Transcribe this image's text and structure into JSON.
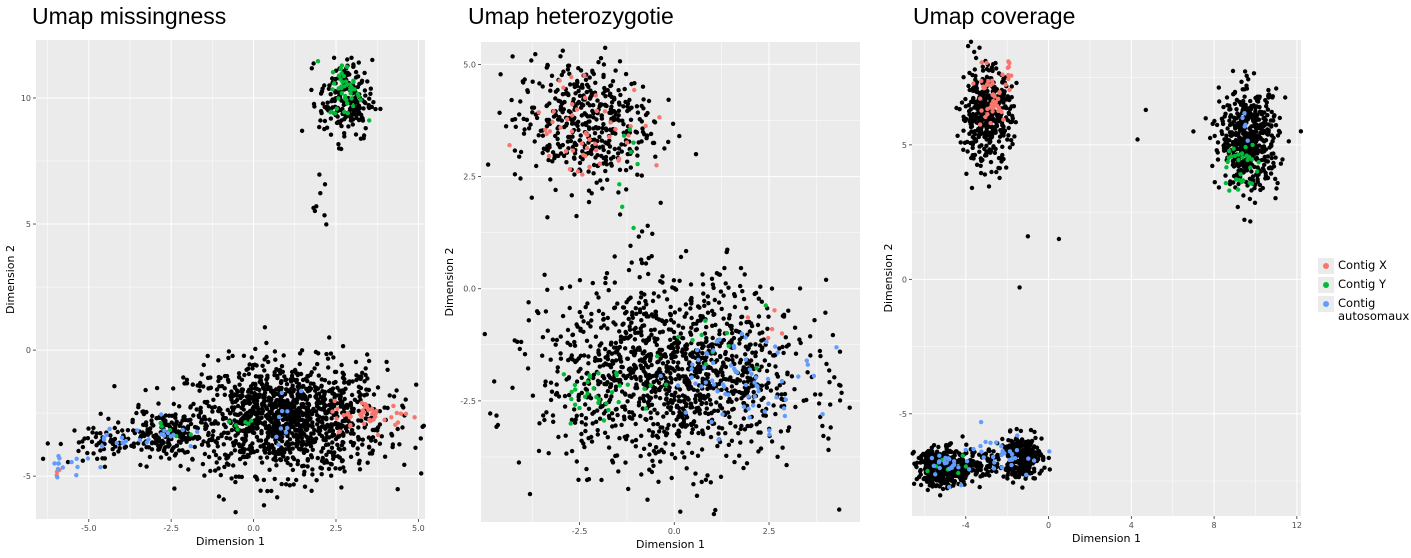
{
  "colors": {
    "panel_bg": "#ebebeb",
    "grid": "#ffffff",
    "contig_x": "#f8766d",
    "contig_y": "#00ba38",
    "contig_autosomaux": "#619cff",
    "other": "#000000"
  },
  "legend": {
    "items": [
      {
        "label": "Contig X",
        "color": "#f8766d"
      },
      {
        "label": "Contig Y",
        "color": "#00ba38"
      },
      {
        "label": "Contig\nautosomaux",
        "color": "#619cff"
      }
    ]
  },
  "chart_data": [
    {
      "type": "scatter",
      "title": "Umap missingness",
      "xlabel": "Dimension 1",
      "ylabel": "Dimension 2",
      "xlim": [
        -6.6,
        5.2
      ],
      "ylim": [
        -6.7,
        12.3
      ],
      "xticks": [
        -5.0,
        -2.5,
        0.0,
        2.5,
        5.0
      ],
      "xtick_labels": [
        "-5.0",
        "-2.5",
        "0.0",
        "2.5",
        "5.0"
      ],
      "yticks": [
        -5,
        0,
        5,
        10
      ],
      "ytick_labels": [
        "-5",
        "0",
        "5",
        "10"
      ],
      "grid": true,
      "clusters": [
        {
          "series": "other",
          "cx": 1.0,
          "cy": -2.7,
          "sx": 1.5,
          "sy": 1.1,
          "n": 1300
        },
        {
          "series": "other",
          "cx": -2.6,
          "cy": -3.3,
          "sx": 0.6,
          "sy": 0.45,
          "n": 160
        },
        {
          "series": "other",
          "cx": -4.6,
          "cy": -3.7,
          "sx": 0.7,
          "sy": 0.4,
          "n": 70
        },
        {
          "series": "other",
          "cx": 2.8,
          "cy": 9.9,
          "sx": 0.4,
          "sy": 0.8,
          "n": 200
        },
        {
          "series": "other",
          "cx": 2.0,
          "cy": 6.0,
          "sx": 0.25,
          "sy": 0.9,
          "n": 8
        },
        {
          "series": "Contig X",
          "cx": 3.6,
          "cy": -2.6,
          "sx": 0.6,
          "sy": 0.3,
          "n": 45
        },
        {
          "series": "Contig X",
          "cx": -6.0,
          "cy": -4.8,
          "sx": 0.2,
          "sy": 0.15,
          "n": 3
        },
        {
          "series": "Contig Y",
          "cx": 2.8,
          "cy": 10.3,
          "sx": 0.25,
          "sy": 0.55,
          "n": 45
        },
        {
          "series": "Contig Y",
          "cx": -0.3,
          "cy": -2.9,
          "sx": 0.3,
          "sy": 0.15,
          "n": 6
        },
        {
          "series": "Contig Y",
          "cx": -2.6,
          "cy": -3.3,
          "sx": 0.4,
          "sy": 0.3,
          "n": 5
        },
        {
          "series": "Contig autosomaux",
          "cx": -5.6,
          "cy": -4.4,
          "sx": 0.35,
          "sy": 0.3,
          "n": 14
        },
        {
          "series": "Contig autosomaux",
          "cx": -3.9,
          "cy": -3.5,
          "sx": 0.5,
          "sy": 0.3,
          "n": 14
        },
        {
          "series": "Contig autosomaux",
          "cx": -2.6,
          "cy": -3.3,
          "sx": 0.4,
          "sy": 0.3,
          "n": 10
        },
        {
          "series": "Contig autosomaux",
          "cx": 1.0,
          "cy": -2.4,
          "sx": 0.4,
          "sy": 0.5,
          "n": 10
        }
      ]
    },
    {
      "type": "scatter",
      "title": "Umap heterozygotie",
      "xlabel": "Dimension 1",
      "ylabel": "Dimension 2",
      "xlim": [
        -5.1,
        4.9
      ],
      "ylim": [
        -5.2,
        5.5
      ],
      "xticks": [
        -2.5,
        0.0,
        2.5
      ],
      "xtick_labels": [
        "-2.5",
        "0.0",
        "2.5"
      ],
      "yticks": [
        -2.5,
        0.0,
        2.5,
        5.0
      ],
      "ytick_labels": [
        "-2.5",
        "0.0",
        "2.5",
        "5.0"
      ],
      "grid": true,
      "clusters": [
        {
          "series": "other",
          "cx": -2.4,
          "cy": 3.7,
          "sx": 0.9,
          "sy": 0.7,
          "n": 450
        },
        {
          "series": "other",
          "cx": 0.0,
          "cy": -1.9,
          "sx": 1.7,
          "sy": 1.0,
          "n": 1300
        },
        {
          "series": "other",
          "cx": -0.9,
          "cy": 1.1,
          "sx": 0.5,
          "sy": 0.7,
          "n": 12
        },
        {
          "series": "Contig X",
          "cx": -2.3,
          "cy": 3.6,
          "sx": 0.8,
          "sy": 0.6,
          "n": 50
        },
        {
          "series": "Contig X",
          "cx": 2.6,
          "cy": -1.0,
          "sx": 0.3,
          "sy": 0.3,
          "n": 5
        },
        {
          "series": "Contig Y",
          "cx": -1.8,
          "cy": -2.3,
          "sx": 0.7,
          "sy": 0.3,
          "n": 30
        },
        {
          "series": "Contig Y",
          "cx": -1.2,
          "cy": 2.7,
          "sx": 0.2,
          "sy": 0.6,
          "n": 8
        },
        {
          "series": "Contig Y",
          "cx": 1.0,
          "cy": -1.3,
          "sx": 0.8,
          "sy": 0.5,
          "n": 12
        },
        {
          "series": "Contig autosomaux",
          "cx": 1.8,
          "cy": -2.0,
          "sx": 1.0,
          "sy": 0.5,
          "n": 70
        }
      ]
    },
    {
      "type": "scatter",
      "title": "Umap coverage",
      "xlabel": "Dimension 1",
      "ylabel": "Dimension 2",
      "xlim": [
        -6.6,
        12.2
      ],
      "ylim": [
        -8.8,
        8.9
      ],
      "xticks": [
        -4,
        0,
        4,
        8,
        12
      ],
      "xtick_labels": [
        "-4",
        "0",
        "4",
        "8",
        "12"
      ],
      "yticks": [
        -5,
        0,
        5
      ],
      "ytick_labels": [
        "-5",
        "0",
        "5"
      ],
      "grid": true,
      "clusters": [
        {
          "series": "other",
          "cx": -3.0,
          "cy": 6.1,
          "sx": 0.6,
          "sy": 0.9,
          "n": 420
        },
        {
          "series": "other",
          "cx": 9.7,
          "cy": 5.2,
          "sx": 0.7,
          "sy": 0.9,
          "n": 520
        },
        {
          "series": "other",
          "cx": -5.0,
          "cy": -7.0,
          "sx": 0.7,
          "sy": 0.35,
          "n": 420
        },
        {
          "series": "other",
          "cx": -1.3,
          "cy": -6.6,
          "sx": 0.5,
          "sy": 0.4,
          "n": 260
        },
        {
          "series": "other",
          "cx": -3.2,
          "cy": -6.8,
          "sx": 0.5,
          "sy": 0.3,
          "n": 60
        },
        {
          "series": "Contig X",
          "cx": -2.9,
          "cy": 6.7,
          "sx": 0.5,
          "sy": 0.6,
          "n": 40
        },
        {
          "series": "Contig X",
          "cx": -2.0,
          "cy": 7.8,
          "sx": 0.15,
          "sy": 0.2,
          "n": 8
        },
        {
          "series": "Contig Y",
          "cx": 9.3,
          "cy": 4.2,
          "sx": 0.4,
          "sy": 0.6,
          "n": 30
        },
        {
          "series": "Contig Y",
          "cx": -4.8,
          "cy": -7.0,
          "sx": 0.5,
          "sy": 0.25,
          "n": 8
        },
        {
          "series": "Contig autosomaux",
          "cx": -4.6,
          "cy": -6.9,
          "sx": 0.6,
          "sy": 0.3,
          "n": 25
        },
        {
          "series": "Contig autosomaux",
          "cx": -2.0,
          "cy": -6.5,
          "sx": 0.8,
          "sy": 0.4,
          "n": 30
        },
        {
          "series": "Contig autosomaux",
          "cx": 9.6,
          "cy": 5.4,
          "sx": 0.2,
          "sy": 0.3,
          "n": 5
        }
      ],
      "points": [
        {
          "series": "other",
          "x": 4.3,
          "y": 5.2
        },
        {
          "series": "other",
          "x": 4.7,
          "y": 6.3
        },
        {
          "series": "other",
          "x": 0.5,
          "y": 1.5
        },
        {
          "series": "other",
          "x": -1.0,
          "y": 1.6
        },
        {
          "series": "other",
          "x": -1.4,
          "y": -0.3
        },
        {
          "series": "other",
          "x": 7.0,
          "y": 5.5
        },
        {
          "series": "other",
          "x": -3.7,
          "y": 3.4
        }
      ]
    }
  ]
}
